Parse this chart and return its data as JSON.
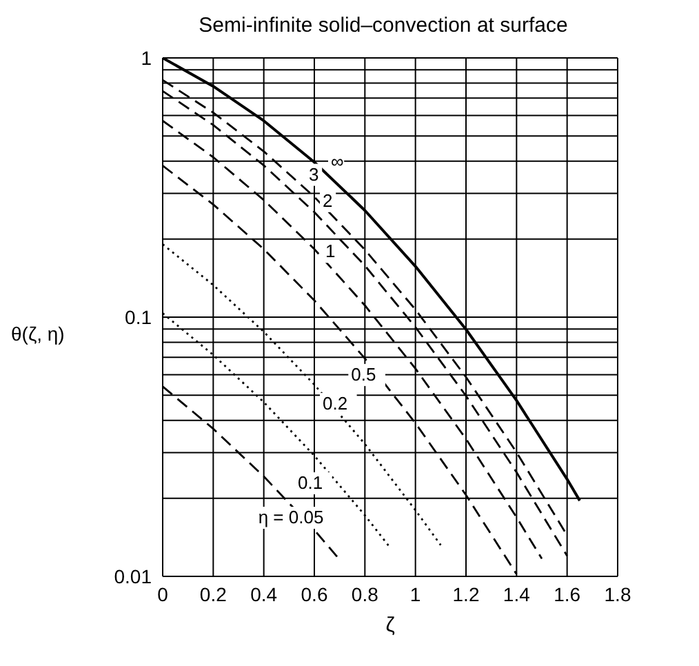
{
  "chart_data": {
    "type": "line",
    "title": "Semi-infinite solid–convection at surface",
    "xlabel": "ζ",
    "ylabel": "θ(ζ, η)",
    "log": "y",
    "xlim": [
      0,
      1.8
    ],
    "xticks": [
      0,
      0.2,
      0.4,
      0.6,
      0.8,
      1,
      1.2,
      1.4,
      1.6,
      1.8
    ],
    "ylim": [
      0.01,
      1
    ],
    "yticks": [
      0.01,
      0.1,
      1
    ],
    "grid": true,
    "legend": false,
    "marker": "none",
    "series": [
      {
        "name": "∞",
        "color": "#000000",
        "line_style": "solid",
        "x": [
          0,
          0.2,
          0.4,
          0.6,
          0.8,
          1,
          1.2,
          1.4,
          1.6,
          1.65
        ],
        "values": [
          1,
          0.777,
          0.572,
          0.396,
          0.258,
          0.157,
          0.0897,
          0.0477,
          0.0237,
          0.0196
        ]
      },
      {
        "name": "3",
        "color": "#000000",
        "line_style": "dashed",
        "x": [
          0,
          0.2,
          0.4,
          0.6,
          0.8,
          1,
          1.2,
          1.4,
          1.6
        ],
        "values": [
          0.821,
          0.615,
          0.436,
          0.291,
          0.182,
          0.107,
          0.0587,
          0.0301,
          0.0144
        ]
      },
      {
        "name": "2",
        "color": "#000000",
        "line_style": "dashed",
        "x": [
          0,
          0.2,
          0.4,
          0.6,
          0.8,
          1,
          1.2,
          1.4,
          1.6
        ],
        "values": [
          0.745,
          0.551,
          0.385,
          0.254,
          0.158,
          0.0915,
          0.0497,
          0.0252,
          0.012
        ]
      },
      {
        "name": "1",
        "color": "#000000",
        "line_style": "dashed",
        "x": [
          0,
          0.2,
          0.4,
          0.6,
          0.8,
          1,
          1.2,
          1.4,
          1.5
        ],
        "values": [
          0.572,
          0.414,
          0.283,
          0.183,
          0.111,
          0.0633,
          0.0339,
          0.0169,
          0.0117
        ]
      },
      {
        "name": "0.5",
        "color": "#000000",
        "line_style": "dashed",
        "x": [
          0,
          0.2,
          0.4,
          0.6,
          0.8,
          1,
          1.2,
          1.4
        ],
        "values": [
          0.384,
          0.272,
          0.183,
          0.116,
          0.0693,
          0.039,
          0.0206,
          0.0102
        ]
      },
      {
        "name": "0.2",
        "color": "#000000",
        "line_style": "dotted",
        "x": [
          0,
          0.2,
          0.4,
          0.6,
          0.8,
          1,
          1.1
        ],
        "values": [
          0.191,
          0.133,
          0.0878,
          0.0549,
          0.0324,
          0.018,
          0.0132
        ]
      },
      {
        "name": "0.1",
        "color": "#000000",
        "line_style": "dotted",
        "x": [
          0,
          0.2,
          0.4,
          0.6,
          0.8,
          0.9
        ],
        "values": [
          0.1035,
          0.0715,
          0.047,
          0.0292,
          0.0172,
          0.0129
        ]
      },
      {
        "name": "η = 0.05",
        "color": "#000000",
        "line_style": "dashed",
        "x": [
          0,
          0.2,
          0.4,
          0.6,
          0.7
        ],
        "values": [
          0.054,
          0.0371,
          0.0243,
          0.0151,
          0.0116
        ]
      }
    ]
  }
}
